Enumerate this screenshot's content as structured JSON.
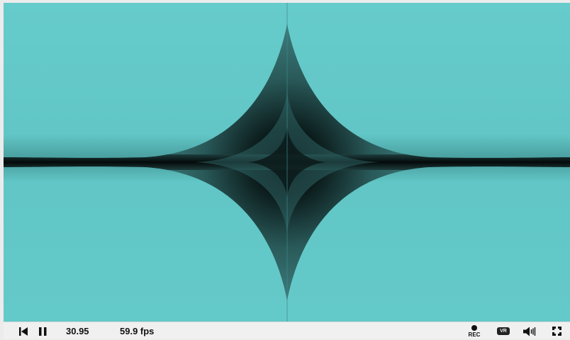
{
  "player": {
    "time": "30.95",
    "fps": "59.9 fps",
    "rec_label": "REC",
    "vr_label": "VR"
  },
  "colors": {
    "shader_teal": "#63c8c8",
    "shader_dark": "#0f2424",
    "controls_bg": "#f0f0f0",
    "icon": "#111111"
  },
  "icons": {
    "rewind": "skip-to-start-icon",
    "pause": "pause-icon",
    "record": "record-icon",
    "vr": "vr-headset-icon",
    "volume": "volume-icon",
    "fullscreen": "fullscreen-icon"
  }
}
